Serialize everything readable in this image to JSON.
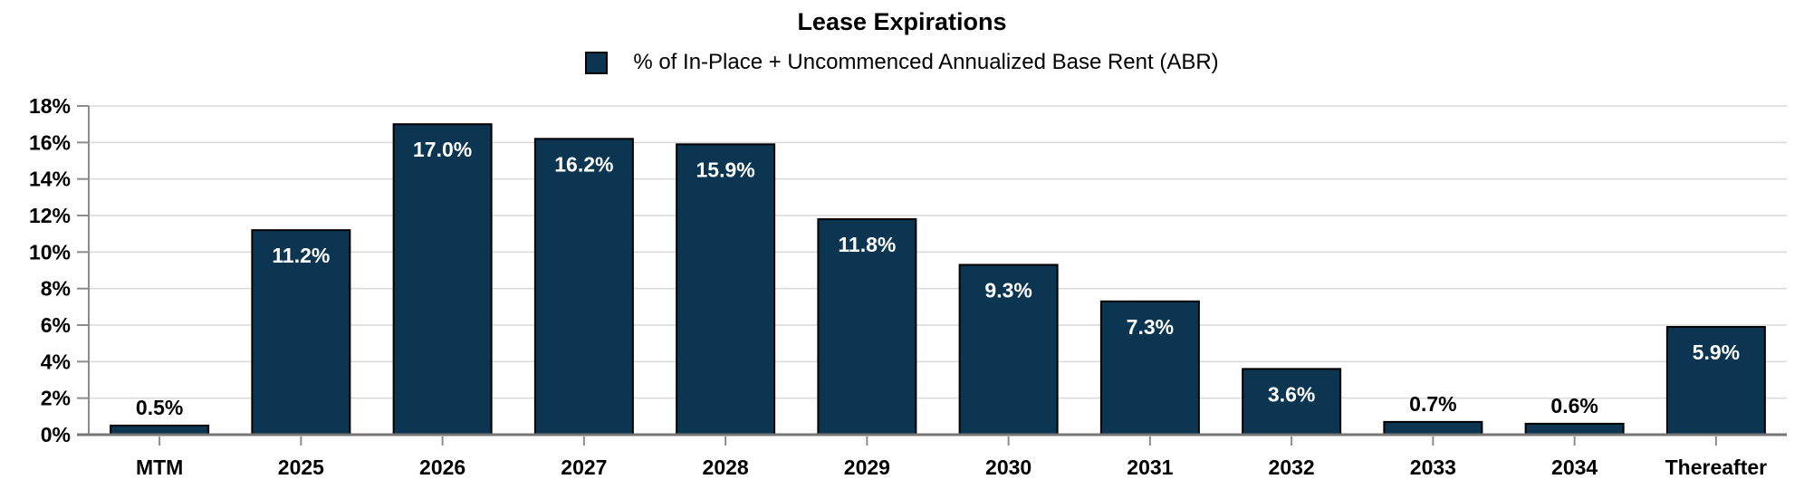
{
  "page": {
    "background": "#FFFFFF"
  },
  "chart_data": {
    "type": "bar",
    "title": "Lease Expirations",
    "legend": {
      "label": "% of In-Place + Uncommenced Annualized Base Rent (ABR)",
      "position": "top"
    },
    "categories": [
      "MTM",
      "2025",
      "2026",
      "2027",
      "2028",
      "2029",
      "2030",
      "2031",
      "2032",
      "2033",
      "2034",
      "Thereafter"
    ],
    "values": [
      0.5,
      11.2,
      17.0,
      16.2,
      15.9,
      11.8,
      9.3,
      7.3,
      3.6,
      0.7,
      0.6,
      5.9
    ],
    "value_labels": [
      "0.5%",
      "11.2%",
      "17.0%",
      "16.2%",
      "15.9%",
      "11.8%",
      "9.3%",
      "7.3%",
      "3.6%",
      "0.7%",
      "0.6%",
      "5.9%"
    ],
    "xlabel": "",
    "ylabel": "",
    "ylim": [
      0,
      18
    ],
    "yticks": {
      "values": [
        0,
        2,
        4,
        6,
        8,
        10,
        12,
        14,
        16,
        18
      ],
      "labels": [
        "0%",
        "2%",
        "4%",
        "6%",
        "8%",
        "10%",
        "12%",
        "14%",
        "16%",
        "18%"
      ]
    },
    "grid": true,
    "label_inside_threshold_pct": 2,
    "colors": {
      "bar_fill": "#0B3551",
      "bar_border": "#000000",
      "gridline": "#D9D9D9",
      "axis_line": "#8C8C8C",
      "baseline": "#767676",
      "tick": "#8C8C8C",
      "label_inside": "#FFFFFF",
      "label_outside": "#000000",
      "title_color": "#000000"
    }
  }
}
